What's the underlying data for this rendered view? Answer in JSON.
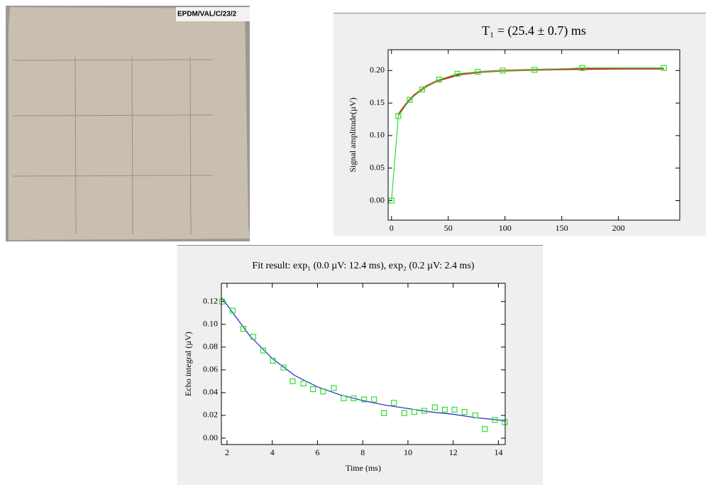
{
  "photo": {
    "label": "EPDM/VAL/C/23/2"
  },
  "chart_data": [
    {
      "type": "line",
      "title": "T₁ = (25.4 ± 0.7) ms",
      "y_label": "Signal amplitude(µV)",
      "xlim": [
        -3,
        254
      ],
      "ylim": [
        -0.03,
        0.232
      ],
      "xticks": [
        0,
        50,
        100,
        150,
        200
      ],
      "yticks": [
        {
          "value": 0,
          "label": "0.00"
        },
        {
          "value": 0.05,
          "label": "0.05"
        },
        {
          "value": 0.1,
          "label": "0.10"
        },
        {
          "value": 0.15,
          "label": "0.15"
        },
        {
          "value": 0.2,
          "label": "0.20"
        }
      ],
      "series": [
        {
          "color": "#d62020",
          "line": true,
          "marker": "none",
          "x": [
            6,
            10,
            15,
            20,
            30,
            40,
            60,
            80,
            100,
            150,
            200,
            240
          ],
          "values": [
            0.132,
            0.142,
            0.153,
            0.162,
            0.175,
            0.184,
            0.194,
            0.198,
            0.2,
            0.202,
            0.203,
            0.203
          ]
        },
        {
          "color": "#33dd33",
          "line": true,
          "marker": "square",
          "x": [
            0,
            6,
            16,
            27,
            42,
            58,
            76,
            98,
            126,
            168,
            240
          ],
          "values": [
            0.0,
            0.13,
            0.155,
            0.171,
            0.186,
            0.195,
            0.198,
            0.2,
            0.201,
            0.204,
            0.204
          ]
        }
      ]
    },
    {
      "type": "line",
      "title": "Fit result: exp₁ (0.0 µV: 12.4 ms),   exp₂ (0.2 µV: 2.4 ms)",
      "x_label": "Time (ms)",
      "y_label": "Echo integral (µV)",
      "xlim": [
        1.75,
        14.3
      ],
      "ylim": [
        -0.0056,
        0.136
      ],
      "xticks": [
        2,
        4,
        6,
        8,
        10,
        12,
        14
      ],
      "yticks": [
        {
          "value": 0,
          "label": "0.00"
        },
        {
          "value": 0.02,
          "label": "0.02"
        },
        {
          "value": 0.04,
          "label": "0.04"
        },
        {
          "value": 0.06,
          "label": "0.06"
        },
        {
          "value": 0.08,
          "label": "0.08"
        },
        {
          "value": 0.1,
          "label": "0.10"
        },
        {
          "value": 0.12,
          "label": "0.12"
        }
      ],
      "series": [
        {
          "color": "#2222cc",
          "line": true,
          "marker": "none",
          "x": [
            1.78,
            3,
            4,
            5,
            6,
            7,
            8,
            9,
            10,
            11,
            12,
            13,
            14,
            14.3
          ],
          "values": [
            0.123,
            0.09,
            0.07,
            0.055,
            0.045,
            0.038,
            0.033,
            0.029,
            0.026,
            0.023,
            0.021,
            0.018,
            0.016,
            0.015
          ]
        },
        {
          "color": "#33dd33",
          "line": false,
          "marker": "square",
          "x": [
            1.78,
            2.25,
            2.72,
            3.16,
            3.6,
            4.03,
            4.5,
            4.9,
            5.38,
            5.8,
            6.25,
            6.72,
            7.16,
            7.6,
            8.06,
            8.5,
            8.94,
            9.38,
            9.84,
            10.28,
            10.72,
            11.19,
            11.63,
            12.06,
            12.5,
            12.97,
            13.4,
            13.84,
            14.28
          ],
          "values": [
            0.12,
            0.112,
            0.096,
            0.089,
            0.077,
            0.068,
            0.062,
            0.05,
            0.048,
            0.043,
            0.041,
            0.044,
            0.035,
            0.035,
            0.034,
            0.034,
            0.022,
            0.031,
            0.022,
            0.023,
            0.024,
            0.027,
            0.025,
            0.025,
            0.023,
            0.02,
            0.008,
            0.016,
            0.014
          ]
        }
      ]
    }
  ]
}
